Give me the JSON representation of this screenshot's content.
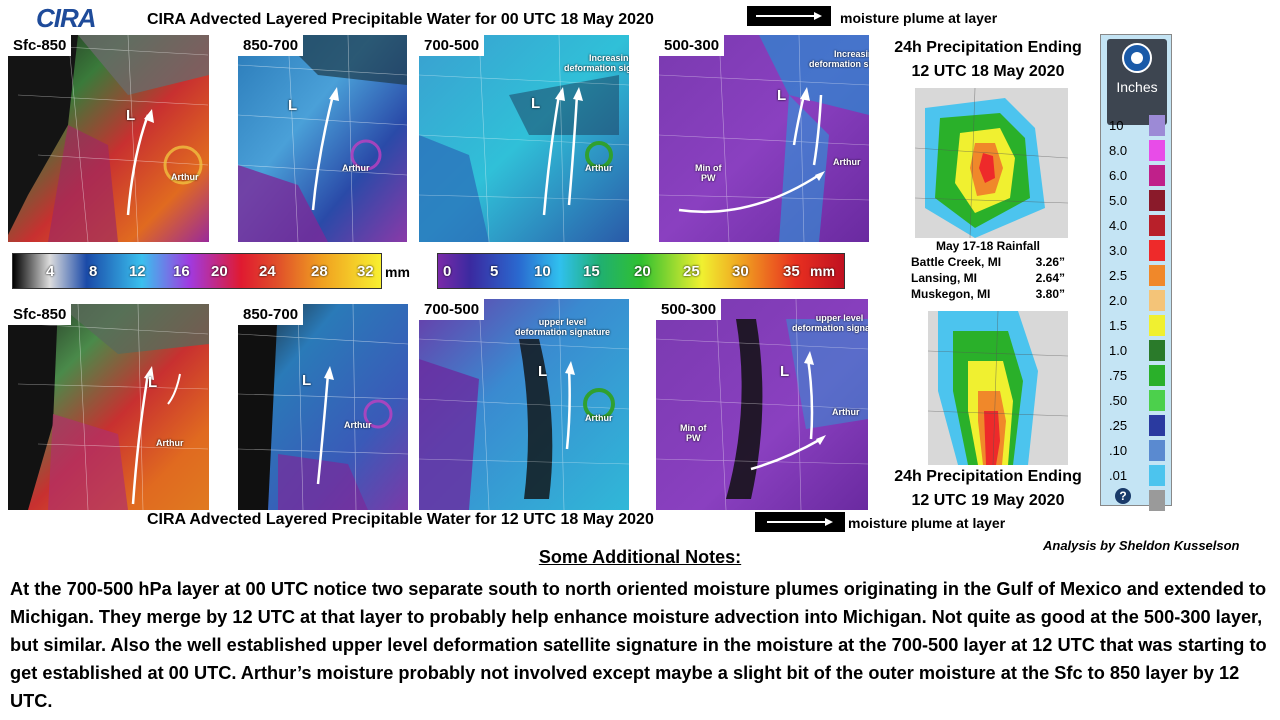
{
  "logo": {
    "text": "CIRA"
  },
  "top_title": "CIRA Advected Layered Precipitable Water for 00 UTC 18 May 2020",
  "bottom_title": "CIRA Advected Layered Precipitable Water for 12 UTC 18 May 2020",
  "plume_legend_label": "moisture plume at layer",
  "panels_top": [
    {
      "label": "Sfc-850",
      "L": "L",
      "note": "Arthur"
    },
    {
      "label": "850-700",
      "L": "L",
      "note": "Arthur"
    },
    {
      "label": "700-500",
      "L": "L",
      "note": "Arthur",
      "annot": "Increasing\ndeformation signature"
    },
    {
      "label": "500-300",
      "L": "L",
      "note": "Arthur",
      "annot": "Increasing\ndeformation signature",
      "annot2": "Min of\nPW"
    }
  ],
  "panels_bottom": [
    {
      "label": "Sfc-850",
      "L": "L",
      "note": "Arthur"
    },
    {
      "label": "850-700",
      "L": "L",
      "note": "Arthur"
    },
    {
      "label": "700-500",
      "L": "L",
      "note": "Arthur",
      "annot": "upper level\ndeformation signature"
    },
    {
      "label": "500-300",
      "L": "L",
      "note": "Arthur",
      "annot": "upper level\ndeformation signature",
      "annot2": "Min of\nPW"
    }
  ],
  "colorbar_left": {
    "ticks": [
      "4",
      "8",
      "12",
      "16",
      "20",
      "24",
      "28",
      "32"
    ],
    "unit": "mm"
  },
  "colorbar_right": {
    "ticks": [
      "0",
      "5",
      "10",
      "15",
      "20",
      "25",
      "30",
      "35"
    ],
    "unit": "mm"
  },
  "precip_top_title": [
    "24h Precipitation  Ending",
    "12 UTC 18 May 2020"
  ],
  "precip_bottom_title": [
    "24h Precipitation  Ending",
    "12 UTC 19 May 2020"
  ],
  "rainfall": {
    "title": "May 17-18 Rainfall",
    "rows": [
      {
        "place": "Battle Creek, MI",
        "amount": "3.26”"
      },
      {
        "place": "Lansing, MI",
        "amount": "2.64”"
      },
      {
        "place": "Muskegon, MI",
        "amount": "3.80”"
      }
    ]
  },
  "precip_legend": {
    "unit": "Inches",
    "items": [
      {
        "label": "10",
        "color": "#9c8ad6"
      },
      {
        "label": "8.0",
        "color": "#e84ce8"
      },
      {
        "label": "6.0",
        "color": "#c0208a"
      },
      {
        "label": "5.0",
        "color": "#8a1a2a"
      },
      {
        "label": "4.0",
        "color": "#b8202a"
      },
      {
        "label": "3.0",
        "color": "#ee2a2a"
      },
      {
        "label": "2.5",
        "color": "#f0882a"
      },
      {
        "label": "2.0",
        "color": "#f4c478"
      },
      {
        "label": "1.5",
        "color": "#f0f030"
      },
      {
        "label": "1.0",
        "color": "#2a7a2a"
      },
      {
        "label": ".75",
        "color": "#2ab02a"
      },
      {
        "label": ".50",
        "color": "#4cd04c"
      },
      {
        "label": ".25",
        "color": "#2a3aa0"
      },
      {
        "label": ".10",
        "color": "#5a8ad0"
      },
      {
        "label": ".01",
        "color": "#4cc4ee"
      },
      {
        "label": "",
        "color": "#9a9a9a"
      }
    ],
    "help": "?"
  },
  "credit": "Analysis by Sheldon Kusselson",
  "notes": {
    "heading": "Some Additional Notes:",
    "body": "At the 700-500 hPa layer at 00 UTC notice two separate south to north oriented  moisture plumes originating in the Gulf of Mexico and extended to Michigan. They merge by 12 UTC at that layer to probably help enhance moisture advection into Michigan. Not quite as good at the 500-300 layer, but similar. Also the well established upper level deformation satellite signature in the moisture at the 700-500 layer at 12 UTC that was starting to get established at 00 UTC. Arthur’s moisture probably not involved except maybe a slight bit of the outer moisture at the Sfc to 850 layer by 12 UTC."
  }
}
